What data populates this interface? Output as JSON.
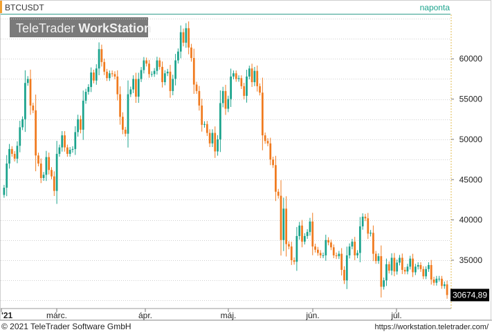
{
  "header": {
    "symbol": "BTCUSDT",
    "interval": "naponta"
  },
  "watermark": {
    "brand_light": "TeleTrader",
    "brand_bold": "WorkStation"
  },
  "footer": {
    "copyright": "© 2021  TeleTrader Software GmbH",
    "url": "https://workstation.teletrader.com/"
  },
  "colors": {
    "up": "#1aa38c",
    "down": "#f07a1e",
    "grid": "#cfcfcf",
    "price_label_bg": "#000000",
    "header_marker": "#f0a030",
    "interval_text": "#1aa38c"
  },
  "chart_data": {
    "type": "candlestick",
    "title": "BTCUSDT",
    "period": "naponta",
    "y_ticks": [
      35000,
      40000,
      45000,
      50000,
      55000,
      60000
    ],
    "y_tick_labels": [
      "35000",
      "40000",
      "45000",
      "50000",
      "55000",
      "60000"
    ],
    "ylim": [
      29000,
      65500
    ],
    "x_tick_labels": [
      "'21",
      "márc.",
      "ápr.",
      "máj.",
      "jún.",
      "júl."
    ],
    "last_price": 30674.89,
    "last_price_label": "30674,89",
    "closes": [
      44000,
      47000,
      48800,
      48200,
      47600,
      49200,
      51500,
      52500,
      57000,
      57500,
      54200,
      53600,
      48000,
      47000,
      45200,
      45600,
      47800,
      46200,
      45400,
      43600,
      48200,
      49000,
      50500,
      49000,
      48200,
      48700,
      48800,
      50900,
      52500,
      51200,
      54800,
      55900,
      56500,
      58300,
      57300,
      58800,
      61200,
      59600,
      58400,
      57600,
      58200,
      58100,
      57800,
      55600,
      52800,
      51200,
      50700,
      55600,
      56200,
      57500,
      55300,
      57500,
      58600,
      59800,
      59400,
      58100,
      58100,
      58500,
      59800,
      59000,
      57100,
      58200,
      58400,
      56000,
      57500,
      59800,
      60900,
      63300,
      62000,
      63800,
      61400,
      60100,
      56800,
      56000,
      54200,
      51800,
      51900,
      50800,
      49500,
      50800,
      48500,
      50000,
      54500,
      56000,
      53800,
      55000,
      57800,
      58200,
      57500,
      57600,
      56600,
      55400,
      57800,
      58800,
      57100,
      58500,
      56600,
      55800,
      50500,
      49800,
      49500,
      47500,
      46800,
      43500,
      43000,
      37500,
      41400,
      37000,
      36700,
      35000,
      34800,
      38000,
      39300,
      37300,
      38000,
      38500,
      39800,
      36700,
      36300,
      35900,
      35600,
      35600,
      37500,
      37200,
      36600,
      35600,
      35500,
      35800,
      33800,
      32500,
      35600,
      36700,
      37300,
      35600,
      35900,
      39200,
      40400,
      40200,
      38300,
      38400,
      35800,
      34900,
      35500,
      31700,
      32500,
      34500,
      33700,
      35300,
      33600,
      34700,
      35300,
      33800,
      33600,
      34200,
      35200,
      33500,
      34200,
      34400,
      33900,
      33000,
      33900,
      34400,
      32600,
      32200,
      32700,
      32700,
      31800,
      32000,
      30675
    ]
  }
}
